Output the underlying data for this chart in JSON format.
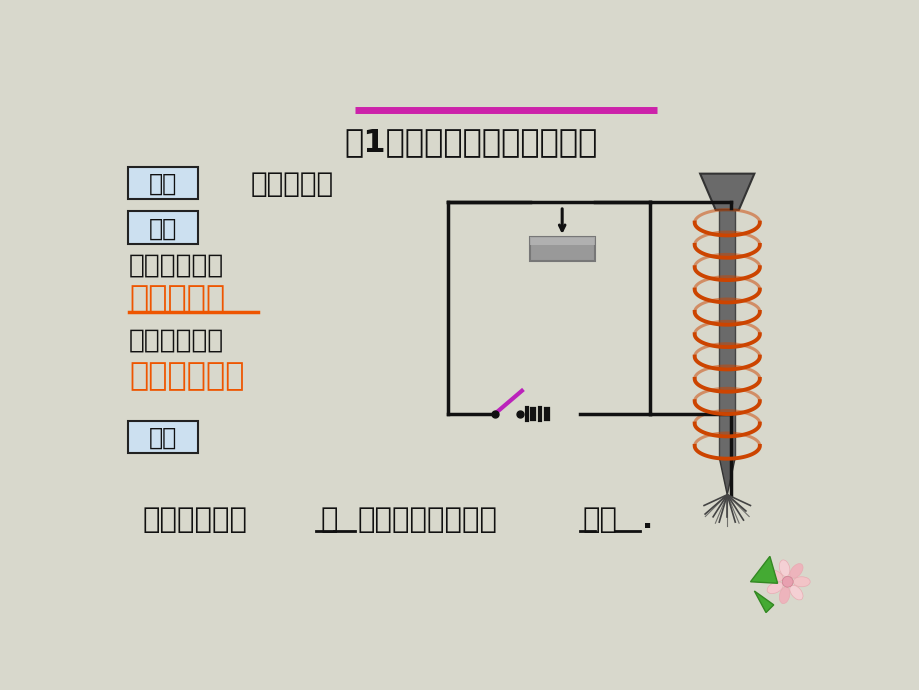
{
  "bg_color": "#d8d8cc",
  "title_line_color": "#cc22aa",
  "title_text": "（1）研究电磁铁的磁性有无",
  "subtitle_text": "闭合和断开",
  "label1": "实验",
  "label2": "现象",
  "label3": "结论",
  "label_bg": "#cce0f0",
  "label_border": "#222222",
  "text_black": "#111111",
  "text_orange": "#ee5500",
  "line1": "通电时电磁铁",
  "line2": "吸引大头针",
  "line3": "断电时电磁铁",
  "line4": "不吸引大头针",
  "bottom_text1": "电磁铁通电时",
  "bottom_text2": "有",
  "bottom_text3": "磁性，断电时磁性",
  "bottom_text4": "消失",
  "bottom_text5": ".",
  "circuit_color": "#111111",
  "coil_color": "#cc4400",
  "switch_color": "#bb22bb",
  "battery_color": "#333333",
  "nail_color": "#555555",
  "pin_color": "#444444"
}
